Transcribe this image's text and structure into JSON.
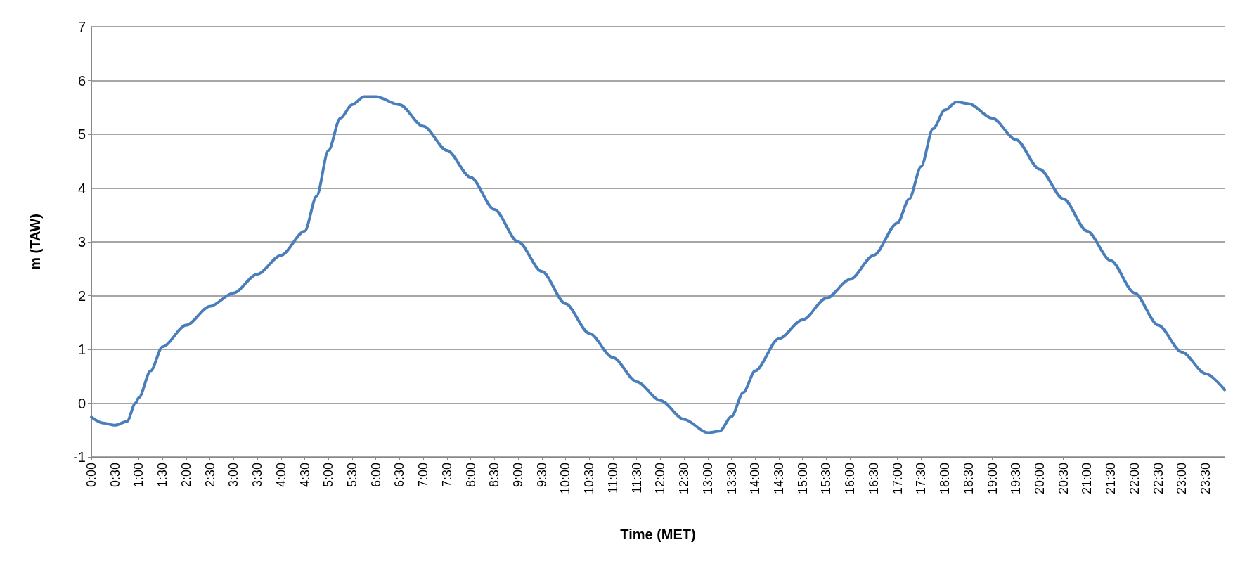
{
  "chart_data": {
    "type": "line",
    "xlabel": "Time (MET)",
    "ylabel": "m (TAW)",
    "grid": "y",
    "marker": "none",
    "line_style": "solid",
    "ylim": [
      -1,
      7
    ],
    "yticks": [
      -1,
      0,
      1,
      2,
      3,
      4,
      5,
      6,
      7
    ],
    "xlim": [
      0,
      23.9
    ],
    "xticks": [
      {
        "value": 0,
        "label": "0:00"
      },
      {
        "value": 0.5,
        "label": "0:30"
      },
      {
        "value": 1,
        "label": "1:00"
      },
      {
        "value": 1.5,
        "label": "1:30"
      },
      {
        "value": 2,
        "label": "2:00"
      },
      {
        "value": 2.5,
        "label": "2:30"
      },
      {
        "value": 3,
        "label": "3:00"
      },
      {
        "value": 3.5,
        "label": "3:30"
      },
      {
        "value": 4,
        "label": "4:00"
      },
      {
        "value": 4.5,
        "label": "4:30"
      },
      {
        "value": 5,
        "label": "5:00"
      },
      {
        "value": 5.5,
        "label": "5:30"
      },
      {
        "value": 6,
        "label": "6:00"
      },
      {
        "value": 6.5,
        "label": "6:30"
      },
      {
        "value": 7,
        "label": "7:00"
      },
      {
        "value": 7.5,
        "label": "7:30"
      },
      {
        "value": 8,
        "label": "8:00"
      },
      {
        "value": 8.5,
        "label": "8:30"
      },
      {
        "value": 9,
        "label": "9:00"
      },
      {
        "value": 9.5,
        "label": "9:30"
      },
      {
        "value": 10,
        "label": "10:00"
      },
      {
        "value": 10.5,
        "label": "10:30"
      },
      {
        "value": 11,
        "label": "11:00"
      },
      {
        "value": 11.5,
        "label": "11:30"
      },
      {
        "value": 12,
        "label": "12:00"
      },
      {
        "value": 12.5,
        "label": "12:30"
      },
      {
        "value": 13,
        "label": "13:00"
      },
      {
        "value": 13.5,
        "label": "13:30"
      },
      {
        "value": 14,
        "label": "14:00"
      },
      {
        "value": 14.5,
        "label": "14:30"
      },
      {
        "value": 15,
        "label": "15:00"
      },
      {
        "value": 15.5,
        "label": "15:30"
      },
      {
        "value": 16,
        "label": "16:00"
      },
      {
        "value": 16.5,
        "label": "16:30"
      },
      {
        "value": 17,
        "label": "17:00"
      },
      {
        "value": 17.5,
        "label": "17:30"
      },
      {
        "value": 18,
        "label": "18:00"
      },
      {
        "value": 18.5,
        "label": "18:30"
      },
      {
        "value": 19,
        "label": "19:00"
      },
      {
        "value": 19.5,
        "label": "19:30"
      },
      {
        "value": 20,
        "label": "20:00"
      },
      {
        "value": 20.5,
        "label": "20:30"
      },
      {
        "value": 21,
        "label": "21:00"
      },
      {
        "value": 21.5,
        "label": "21:30"
      },
      {
        "value": 22,
        "label": "22:00"
      },
      {
        "value": 22.5,
        "label": "22:30"
      },
      {
        "value": 23,
        "label": "23:00"
      },
      {
        "value": 23.5,
        "label": "23:30"
      }
    ],
    "series": [
      {
        "color": "#4a7ebb",
        "x": [
          0,
          0.25,
          0.5,
          0.75,
          0.93,
          1,
          1.25,
          1.5,
          2,
          2.5,
          3,
          3.5,
          4,
          4.5,
          4.75,
          5,
          5.25,
          5.5,
          5.75,
          6,
          6.5,
          7,
          7.5,
          8,
          8.5,
          9,
          9.5,
          10,
          10.5,
          11,
          11.5,
          12,
          12.5,
          13,
          13.25,
          13.5,
          13.75,
          14,
          14.5,
          15,
          15.5,
          16,
          16.5,
          17,
          17.25,
          17.5,
          17.75,
          18,
          18.25,
          18.5,
          19,
          19.5,
          20,
          20.5,
          21,
          21.5,
          22,
          22.5,
          23,
          23.5,
          23.9
        ],
        "values": [
          -0.26,
          -0.37,
          -0.41,
          -0.34,
          0,
          0.1,
          0.6,
          1.05,
          1.45,
          1.8,
          2.05,
          2.4,
          2.75,
          3.2,
          3.85,
          4.7,
          5.3,
          5.55,
          5.7,
          5.7,
          5.55,
          5.15,
          4.7,
          4.2,
          3.6,
          3.0,
          2.45,
          1.85,
          1.3,
          0.85,
          0.4,
          0.05,
          -0.3,
          -0.55,
          -0.52,
          -0.25,
          0.2,
          0.6,
          1.2,
          1.55,
          1.95,
          2.3,
          2.75,
          3.35,
          3.8,
          4.4,
          5.1,
          5.45,
          5.6,
          5.57,
          5.3,
          4.9,
          4.35,
          3.8,
          3.2,
          2.65,
          2.05,
          1.45,
          0.95,
          0.55,
          0.25
        ]
      }
    ]
  }
}
